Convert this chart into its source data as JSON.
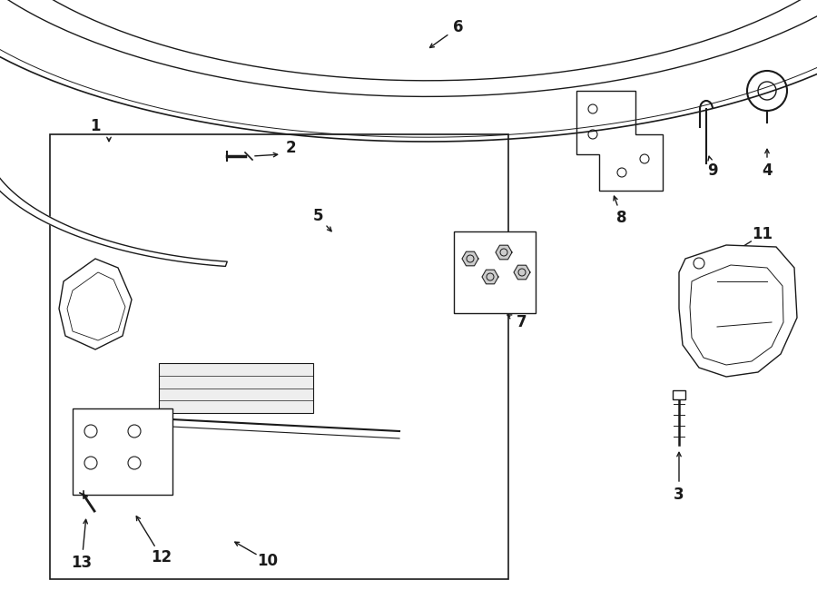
{
  "bg_color": "#ffffff",
  "line_color": "#1a1a1a",
  "figsize": [
    9.0,
    6.61
  ],
  "dpi": 100,
  "lw": 1.0
}
